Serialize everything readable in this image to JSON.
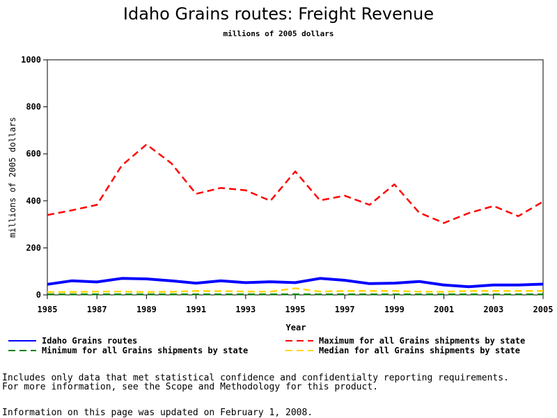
{
  "chart_data": {
    "type": "line",
    "title": "Idaho Grains routes: Freight Revenue",
    "subtitle": "millions of 2005 dollars",
    "xlabel": "Year",
    "ylabel": "millions of 2005 dollars",
    "xlim": [
      1985,
      2005
    ],
    "ylim": [
      0,
      1000
    ],
    "xticks": [
      1985,
      1987,
      1989,
      1991,
      1993,
      1995,
      1997,
      1999,
      2001,
      2003,
      2005
    ],
    "yticks": [
      0,
      200,
      400,
      600,
      800,
      1000
    ],
    "x": [
      1985,
      1986,
      1987,
      1988,
      1989,
      1990,
      1991,
      1992,
      1993,
      1994,
      1995,
      1996,
      1997,
      1998,
      1999,
      2000,
      2001,
      2002,
      2003,
      2004,
      2005
    ],
    "series": [
      {
        "name": "Idaho Grains routes",
        "color": "#0000ff",
        "dash": "solid",
        "values": [
          45,
          60,
          55,
          70,
          68,
          60,
          50,
          60,
          52,
          56,
          52,
          70,
          62,
          48,
          50,
          57,
          42,
          35,
          42,
          42,
          46
        ]
      },
      {
        "name": "Maximum for all Grains shipments by state",
        "color": "#ff0000",
        "dash": "dashed",
        "values": [
          340,
          360,
          383,
          550,
          640,
          560,
          430,
          455,
          445,
          400,
          525,
          402,
          422,
          383,
          470,
          350,
          306,
          348,
          378,
          335,
          397
        ]
      },
      {
        "name": "Minimum for all Grains shipments by state",
        "color": "#008000",
        "dash": "dashed",
        "values": [
          2,
          2,
          2,
          2,
          2,
          2,
          2,
          2,
          2,
          2,
          2,
          2,
          2,
          2,
          2,
          2,
          2,
          2,
          2,
          2,
          2
        ]
      },
      {
        "name": "Median for all Grains shipments by state",
        "color": "#ffd700",
        "dash": "dashed",
        "values": [
          12,
          12,
          14,
          14,
          12,
          13,
          17,
          16,
          14,
          14,
          28,
          14,
          17,
          17,
          17,
          14,
          13,
          17,
          17,
          17,
          17
        ]
      }
    ],
    "grid": false,
    "legend_position": "bottom"
  },
  "notes": {
    "line1": "Includes only data that met statistical confidence and confidentialty reporting requirements.",
    "line2": "For more information, see the Scope and Methodology for this product.",
    "updated": "Information on this page was updated on February 1, 2008."
  }
}
